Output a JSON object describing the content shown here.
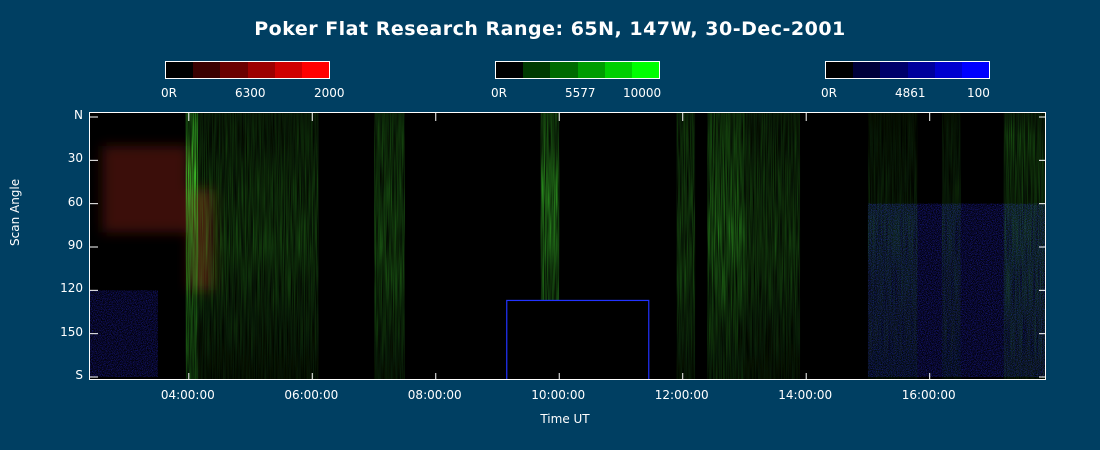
{
  "title": "Poker Flat Research Range: 65N, 147W, 30-Dec-2001",
  "colorbars": [
    {
      "min_label": "0R",
      "wavelength": "6300",
      "max_label": "2000",
      "colors": [
        "#000000",
        "#3a0000",
        "#6a0000",
        "#9c0000",
        "#cf0000",
        "#ff0000"
      ]
    },
    {
      "min_label": "0R",
      "wavelength": "5577",
      "max_label": "10000",
      "colors": [
        "#000000",
        "#003a00",
        "#006a00",
        "#009c00",
        "#00cf00",
        "#00ff00"
      ]
    },
    {
      "min_label": "0R",
      "wavelength": "4861",
      "max_label": "100",
      "colors": [
        "#000000",
        "#00003a",
        "#00006a",
        "#00009c",
        "#0000cf",
        "#0000ff"
      ]
    }
  ],
  "chart_data": {
    "type": "heatmap",
    "title": "Poker Flat Research Range: 65N, 147W, 30-Dec-2001",
    "xlabel": "Time UT",
    "ylabel": "Scan Angle",
    "xlim_hours": [
      2.4,
      17.9
    ],
    "ylim": [
      0,
      180
    ],
    "x_ticks": [
      {
        "hour": 4,
        "label": "04:00:00"
      },
      {
        "hour": 6,
        "label": "06:00:00"
      },
      {
        "hour": 8,
        "label": "08:00:00"
      },
      {
        "hour": 10,
        "label": "10:00:00"
      },
      {
        "hour": 12,
        "label": "12:00:00"
      },
      {
        "hour": 14,
        "label": "14:00:00"
      },
      {
        "hour": 16,
        "label": "16:00:00"
      }
    ],
    "y_ticks": [
      {
        "angle": 0,
        "label": "N"
      },
      {
        "angle": 30,
        "label": "30"
      },
      {
        "angle": 60,
        "label": "60"
      },
      {
        "angle": 90,
        "label": "90"
      },
      {
        "angle": 120,
        "label": "120"
      },
      {
        "angle": 150,
        "label": "150"
      },
      {
        "angle": 180,
        "label": "S"
      }
    ],
    "green_5577_bands": [
      {
        "start_h": 3.95,
        "end_h": 4.15,
        "peak_angle": 40,
        "intensity": 0.95
      },
      {
        "start_h": 4.15,
        "end_h": 6.1,
        "peak_angle": 90,
        "intensity": 0.35
      },
      {
        "start_h": 7.0,
        "end_h": 7.5,
        "peak_angle": 90,
        "intensity": 0.45
      },
      {
        "start_h": 9.7,
        "end_h": 10.0,
        "peak_angle": 60,
        "intensity": 0.7
      },
      {
        "start_h": 11.9,
        "end_h": 12.2,
        "peak_angle": 90,
        "intensity": 0.4
      },
      {
        "start_h": 12.4,
        "end_h": 13.0,
        "peak_angle": 80,
        "intensity": 0.55
      },
      {
        "start_h": 13.0,
        "end_h": 13.9,
        "peak_angle": 90,
        "intensity": 0.35
      },
      {
        "start_h": 15.0,
        "end_h": 15.8,
        "peak_angle": 70,
        "intensity": 0.2
      },
      {
        "start_h": 16.2,
        "end_h": 16.5,
        "peak_angle": 50,
        "intensity": 0.2
      },
      {
        "start_h": 17.2,
        "end_h": 17.9,
        "peak_angle": 15,
        "intensity": 0.35
      }
    ],
    "red_6300_regions": [
      {
        "start_h": 2.6,
        "end_h": 4.0,
        "angle_start": 20,
        "angle_end": 80,
        "intensity": 0.35
      },
      {
        "start_h": 4.0,
        "end_h": 4.4,
        "angle_start": 50,
        "angle_end": 120,
        "intensity": 0.4
      }
    ],
    "blue_4861_noise_regions": [
      {
        "start_h": 2.4,
        "end_h": 3.5,
        "angle_start": 120,
        "angle_end": 180,
        "intensity": 0.25
      },
      {
        "start_h": 15.0,
        "end_h": 17.9,
        "angle_start": 60,
        "angle_end": 180,
        "intensity": 0.3
      }
    ],
    "data_gap": {
      "start_h": 9.15,
      "end_h": 11.45,
      "angle_start": 127,
      "angle_end": 180
    }
  }
}
